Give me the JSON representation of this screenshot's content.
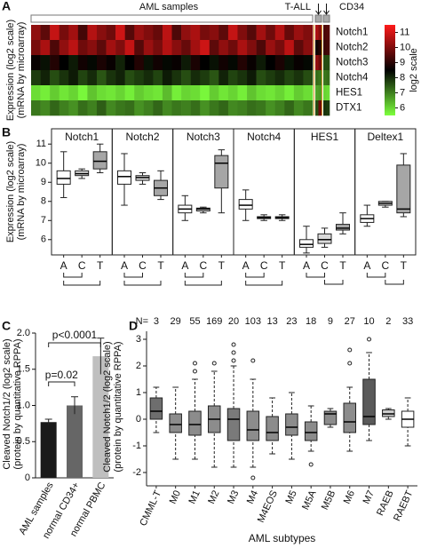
{
  "chart_data": [
    {
      "type": "heatmap",
      "panel": "A",
      "ylabel": [
        "Expression (log2 scale)",
        "(mRNA by microarray)"
      ],
      "row_labels": [
        "Notch1",
        "Notch2",
        "Notch3",
        "Notch4",
        "HES1",
        "DTX1"
      ],
      "groups": [
        {
          "name": "AML samples",
          "values": [
            [
              10.2,
              9.6,
              10.8,
              9.9,
              10.4,
              9.3,
              10.6,
              10.1,
              9.8,
              10.9,
              9.5,
              10.3,
              10.0,
              9.7,
              10.7,
              9.4,
              10.2,
              10.5,
              9.9,
              10.1,
              9.6,
              10.8,
              10.0,
              9.5,
              10.4,
              9.8,
              10.6,
              9.7,
              10.3,
              10.0
            ],
            [
              9.9,
              10.5,
              9.4,
              10.2,
              10.7,
              9.8,
              10.1,
              9.6,
              10.4,
              10.0,
              10.8,
              9.5,
              10.3,
              9.9,
              10.6,
              10.1,
              9.7,
              10.4,
              10.9,
              9.6,
              10.2,
              9.8,
              10.5,
              10.0,
              9.4,
              10.3,
              9.9,
              10.7,
              9.6,
              10.1
            ],
            [
              8.6,
              8.3,
              8.9,
              8.5,
              8.2,
              8.7,
              8.4,
              8.8,
              8.6,
              8.1,
              8.5,
              8.9,
              8.3,
              8.7,
              8.4,
              8.6,
              8.2,
              8.8,
              8.5,
              8.3,
              8.7,
              8.4,
              8.9,
              8.6,
              8.2,
              8.5,
              8.8,
              8.3,
              8.6,
              8.4
            ],
            [
              7.8,
              8.1,
              7.6,
              7.9,
              8.2,
              7.7,
              8.0,
              7.5,
              7.9,
              8.1,
              7.6,
              7.8,
              8.0,
              7.7,
              8.2,
              7.9,
              7.6,
              8.0,
              7.8,
              7.5,
              8.1,
              7.7,
              7.9,
              8.2,
              7.6,
              7.8,
              8.0,
              7.7,
              7.9,
              7.6
            ],
            [
              5.9,
              5.7,
              6.1,
              5.8,
              6.0,
              5.6,
              6.2,
              5.9,
              5.8,
              6.0,
              5.7,
              6.1,
              5.9,
              5.8,
              6.3,
              5.7,
              6.0,
              5.9,
              5.6,
              6.1,
              5.8,
              6.0,
              5.7,
              6.2,
              5.9,
              5.8,
              6.0,
              5.7,
              6.1,
              5.9
            ],
            [
              7.1,
              6.9,
              7.3,
              7.0,
              6.8,
              7.2,
              7.0,
              7.4,
              6.9,
              7.1,
              7.2,
              6.8,
              7.0,
              7.3,
              6.9,
              7.1,
              7.0,
              7.2,
              6.8,
              7.1,
              7.3,
              6.9,
              7.0,
              7.2,
              7.1,
              6.8,
              7.0,
              7.3,
              6.9,
              7.1
            ]
          ]
        },
        {
          "name": "T-ALL",
          "values": [
            [
              10.5,
              10.1
            ],
            [
              8.7,
              8.9
            ],
            [
              10.2,
              9.8
            ],
            [
              7.2,
              7.1
            ],
            [
              6.6,
              6.7
            ],
            [
              7.6,
              9.8
            ]
          ]
        },
        {
          "name": "CD34",
          "values": [
            [
              9.4,
              9.5
            ],
            [
              9.2,
              9.3
            ],
            [
              7.6,
              7.6
            ],
            [
              7.1,
              7.2
            ],
            [
              6.0,
              5.9
            ],
            [
              7.9,
              7.8
            ]
          ]
        }
      ],
      "colors": [
        "#7dff3d",
        "#000000",
        "#ff1a1a"
      ],
      "clim": [
        5.5,
        11.5
      ],
      "colorbar_ticks": [
        6,
        7,
        8,
        9,
        10,
        11
      ],
      "colorbar_label": "log2 scale"
    },
    {
      "type": "box",
      "panel": "B",
      "ylabel": [
        "Expression (log2 scale)",
        "(mRNA by microarray)"
      ],
      "categories": [
        "A",
        "C",
        "T"
      ],
      "colors": [
        "#ffffff",
        "#d9d9d9",
        "#a6a6a6"
      ],
      "ylim": [
        5.2,
        11.8
      ],
      "yticks": [
        6,
        7,
        8,
        9,
        10,
        11
      ],
      "panels": [
        {
          "title": "Notch1",
          "boxes": [
            {
              "min": 8.2,
              "q1": 8.9,
              "median": 9.2,
              "q3": 9.6,
              "max": 10.6
            },
            {
              "min": 9.2,
              "q1": 9.35,
              "median": 9.45,
              "q3": 9.6,
              "max": 9.7
            },
            {
              "min": 9.5,
              "q1": 9.7,
              "median": 10.1,
              "q3": 10.6,
              "max": 11.0
            }
          ]
        },
        {
          "title": "Notch2",
          "boxes": [
            {
              "min": 7.8,
              "q1": 8.9,
              "median": 9.3,
              "q3": 9.6,
              "max": 10.5
            },
            {
              "min": 8.9,
              "q1": 9.1,
              "median": 9.25,
              "q3": 9.35,
              "max": 9.5
            },
            {
              "min": 8.1,
              "q1": 8.3,
              "median": 8.7,
              "q3": 9.1,
              "max": 9.6
            }
          ]
        },
        {
          "title": "Notch3",
          "boxes": [
            {
              "min": 7.0,
              "q1": 7.4,
              "median": 7.6,
              "q3": 7.8,
              "max": 8.3
            },
            {
              "min": 7.4,
              "q1": 7.5,
              "median": 7.6,
              "q3": 7.65,
              "max": 7.7
            },
            {
              "min": 7.4,
              "q1": 8.7,
              "median": 10.0,
              "q3": 10.4,
              "max": 10.7
            }
          ]
        },
        {
          "title": "Notch4",
          "boxes": [
            {
              "min": 7.0,
              "q1": 7.6,
              "median": 7.8,
              "q3": 8.1,
              "max": 8.6
            },
            {
              "min": 7.0,
              "q1": 7.1,
              "median": 7.15,
              "q3": 7.2,
              "max": 7.3
            },
            {
              "min": 7.0,
              "q1": 7.1,
              "median": 7.15,
              "q3": 7.2,
              "max": 7.3
            }
          ]
        },
        {
          "title": "HES1",
          "boxes": [
            {
              "min": 5.3,
              "q1": 5.6,
              "median": 5.75,
              "q3": 6.0,
              "max": 6.7
            },
            {
              "min": 5.6,
              "q1": 5.8,
              "median": 6.0,
              "q3": 6.3,
              "max": 6.6
            },
            {
              "min": 6.3,
              "q1": 6.5,
              "median": 6.6,
              "q3": 6.8,
              "max": 7.4
            }
          ]
        },
        {
          "title": "Deltex1",
          "boxes": [
            {
              "min": 6.7,
              "q1": 6.9,
              "median": 7.1,
              "q3": 7.3,
              "max": 7.8
            },
            {
              "min": 7.7,
              "q1": 7.8,
              "median": 7.9,
              "q3": 8.0,
              "max": 8.0
            },
            {
              "min": 7.2,
              "q1": 7.4,
              "median": 7.6,
              "q3": 9.9,
              "max": 10.5
            }
          ]
        }
      ]
    },
    {
      "type": "bar",
      "panel": "C",
      "ylabel": [
        "Cleaved Notch1/2 (log2 scale)",
        "(protein by quantitative RPPA)"
      ],
      "categories": [
        "AML samples",
        "normal CD34+",
        "normal PBMC"
      ],
      "values": [
        0.77,
        1.0,
        1.68
      ],
      "errors": [
        0.04,
        0.12,
        0.25
      ],
      "colors": [
        "#1a1a1a",
        "#666666",
        "#bfbfbf"
      ],
      "ylim": [
        0,
        2.0
      ],
      "yticks": [
        0,
        0.5,
        {
          "value": 1,
          "label": "1.0"
        },
        1.5,
        {
          "value": 2,
          "label": "2.0"
        }
      ],
      "annotations": [
        "p=0.02",
        "p<0.0001"
      ]
    },
    {
      "type": "box",
      "panel": "D",
      "ylabel": [
        "Cleaved Notch1/2 (log2 scale)",
        "(protein by quantitative RPPA)"
      ],
      "xlabel": "AML subtypes",
      "n_label": "N=",
      "n": [
        3,
        29,
        55,
        169,
        20,
        103,
        13,
        23,
        18,
        9,
        27,
        10,
        2,
        33
      ],
      "categories": [
        "CMML-T",
        "M0",
        "M1",
        "M2",
        "M3",
        "M4",
        "M4EOS",
        "M5",
        "M5A",
        "M5B",
        "M6",
        "M7",
        "RAEB",
        "RAEBT"
      ],
      "colors": [
        "#6e6e6e",
        "#8c8c8c",
        "#8c8c8c",
        "#8c8c8c",
        "#7a7a7a",
        "#8c8c8c",
        "#8c8c8c",
        "#8c8c8c",
        "#8c8c8c",
        "#8c8c8c",
        "#8c8c8c",
        "#5a5a5a",
        "#cccccc",
        "#ffffff"
      ],
      "ylim": [
        -2.5,
        3.3
      ],
      "yticks": [
        -2,
        -1,
        0,
        1,
        2,
        3
      ],
      "boxes": [
        {
          "min": -0.5,
          "q1": 0,
          "median": 0.3,
          "q3": 0.8,
          "max": 1.2,
          "outliers": []
        },
        {
          "min": -1.5,
          "q1": -0.5,
          "median": -0.2,
          "q3": 0.2,
          "max": 1.2,
          "outliers": []
        },
        {
          "min": -1.5,
          "q1": -0.6,
          "median": -0.2,
          "q3": 0.3,
          "max": 1.5,
          "outliers": [
            1.8,
            2.1
          ]
        },
        {
          "min": -1.8,
          "q1": -0.5,
          "median": 0,
          "q3": 0.5,
          "max": 1.8,
          "outliers": [
            2.1
          ]
        },
        {
          "min": -1.8,
          "q1": -0.8,
          "median": 0,
          "q3": 0.4,
          "max": 2.0,
          "outliers": [
            2.2,
            2.5,
            2.8
          ]
        },
        {
          "min": -1.8,
          "q1": -0.8,
          "median": -0.4,
          "q3": 0.3,
          "max": 1.5,
          "outliers": [
            2.2,
            -2.2
          ]
        },
        {
          "min": -1.3,
          "q1": -0.8,
          "median": -0.5,
          "q3": 0.1,
          "max": 0.8,
          "outliers": []
        },
        {
          "min": -1.5,
          "q1": -0.6,
          "median": -0.3,
          "q3": 0.2,
          "max": 1.0,
          "outliers": []
        },
        {
          "min": -1.2,
          "q1": -0.8,
          "median": -0.5,
          "q3": -0.1,
          "max": 0.5,
          "outliers": [
            -1.7
          ]
        },
        {
          "min": -0.3,
          "q1": -0.2,
          "median": 0.2,
          "q3": 0.3,
          "max": 0.4,
          "outliers": []
        },
        {
          "min": -1.2,
          "q1": -0.5,
          "median": -0.1,
          "q3": 0.6,
          "max": 1.2,
          "outliers": [
            2.1,
            2.6
          ]
        },
        {
          "min": -0.8,
          "q1": -0.2,
          "median": 0.1,
          "q3": 1.5,
          "max": 2.5,
          "outliers": [
            3.0
          ]
        },
        {
          "min": 0,
          "q1": 0.1,
          "median": 0.2,
          "q3": 0.35,
          "max": 0.4,
          "outliers": []
        },
        {
          "min": -1.0,
          "q1": -0.3,
          "median": 0,
          "q3": 0.3,
          "max": 0.8,
          "outliers": []
        }
      ]
    }
  ]
}
